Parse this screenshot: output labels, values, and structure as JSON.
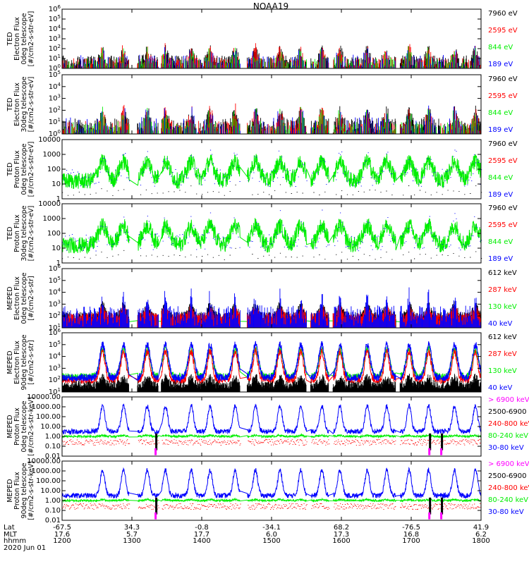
{
  "title": "NOAA19",
  "colors": {
    "black": "#000000",
    "red": "#ff0000",
    "green": "#00ee00",
    "blue": "#0000ff",
    "magenta": "#ff00ff"
  },
  "chart_data": {
    "type": "line",
    "title": "NOAA19",
    "x_axis": {
      "rows": [
        {
          "label": "Lat",
          "values": [
            "-67.5",
            "34.3",
            "-0.8",
            "-34.1",
            "68.2",
            "-76.5",
            "41.9"
          ]
        },
        {
          "label": "MLT",
          "values": [
            "17.6",
            "5.7",
            "17.7",
            "6.0",
            "17.3",
            "16.8",
            "6.2"
          ]
        },
        {
          "label": "hhmm",
          "values": [
            "1200",
            "1300",
            "1400",
            "1500",
            "1600",
            "1700",
            "1800"
          ]
        }
      ],
      "date": "2020 Jun 01",
      "x_range_hours": [
        12,
        18
      ]
    },
    "panels": [
      {
        "ylabel": [
          "TED",
          "Electron Flux",
          "0deg telescope",
          "[#/cm2-s-str-eV]"
        ],
        "ticks": [
          "10^0",
          "10^1",
          "10^2",
          "10^3",
          "10^4",
          "10^5",
          "10^6"
        ],
        "log_range": [
          0,
          6
        ],
        "legend": [
          {
            "label": "7960 eV",
            "color": "black"
          },
          {
            "label": "2595 eV",
            "color": "red"
          },
          {
            "label": "844 eV",
            "color": "green"
          },
          {
            "label": "189 eV",
            "color": "blue"
          }
        ]
      },
      {
        "ylabel": [
          "TED",
          "Electron Flux",
          "30deg telescope",
          "[#/cm2-s-str-eV]"
        ],
        "ticks": [
          "10^0",
          "10^1",
          "10^2",
          "10^3",
          "10^4",
          "10^5"
        ],
        "log_range": [
          0,
          5
        ],
        "legend": [
          {
            "label": "7960 eV",
            "color": "black"
          },
          {
            "label": "2595 eV",
            "color": "red"
          },
          {
            "label": "844 eV",
            "color": "green"
          },
          {
            "label": "189 eV",
            "color": "blue"
          }
        ]
      },
      {
        "ylabel": [
          "TED",
          "Proton Flux",
          "0deg telescope",
          "[#/cm2-s-str-eV]"
        ],
        "ticks": [
          "1",
          "10",
          "100",
          "1000",
          "10000"
        ],
        "log_range": [
          0,
          4
        ],
        "legend": [
          {
            "label": "7960 eV",
            "color": "black"
          },
          {
            "label": "2595 eV",
            "color": "red"
          },
          {
            "label": "844 eV",
            "color": "green"
          },
          {
            "label": "189 eV",
            "color": "blue"
          }
        ]
      },
      {
        "ylabel": [
          "TED",
          "Proton Flux",
          "30deg telescope",
          "[#/cm2-s-str-eV]"
        ],
        "ticks": [
          "1",
          "10",
          "100",
          "1000",
          "10000"
        ],
        "log_range": [
          0,
          4
        ],
        "legend": [
          {
            "label": "7960 eV",
            "color": "black"
          },
          {
            "label": "2595 eV",
            "color": "red"
          },
          {
            "label": "844 eV",
            "color": "green"
          },
          {
            "label": "189 eV",
            "color": "blue"
          }
        ]
      },
      {
        "ylabel": [
          "MEPED",
          "Electron Flux",
          "0deg telescope",
          "[#/cm2-s-str]"
        ],
        "ticks": [
          "10^1",
          "10^2",
          "10^3",
          "10^4",
          "10^5",
          "10^6"
        ],
        "log_range": [
          1,
          6
        ],
        "legend": [
          {
            "label": "612 keV",
            "color": "black"
          },
          {
            "label": "287 keV",
            "color": "red"
          },
          {
            "label": "130 keV",
            "color": "green"
          },
          {
            "label": "40 keV",
            "color": "blue"
          }
        ]
      },
      {
        "ylabel": [
          "MEPED",
          "Electron Flux",
          "90deg telescope",
          "[#/cm2-s-str]"
        ],
        "ticks": [
          "10^1",
          "10^2",
          "10^3",
          "10^4",
          "10^5",
          "10^6"
        ],
        "log_range": [
          1,
          6
        ],
        "legend": [
          {
            "label": "612 keV",
            "color": "black"
          },
          {
            "label": "287 keV",
            "color": "red"
          },
          {
            "label": "130 keV",
            "color": "green"
          },
          {
            "label": "40 keV",
            "color": "blue"
          }
        ]
      },
      {
        "ylabel": [
          "MEPED",
          "Proton Flux",
          "0deg telescope",
          "[#/cm2-s-str-keV]"
        ],
        "ticks": [
          "0.01",
          "0.10",
          "1.00",
          "10.00",
          "100.00",
          "1000.00",
          "10000.00"
        ],
        "log_range": [
          -2,
          4
        ],
        "legend": [
          {
            "label": "> 6900 keV",
            "color": "magenta"
          },
          {
            "label": "2500-6900",
            "color": "black"
          },
          {
            "label": "240-800 keV",
            "color": "red"
          },
          {
            "label": "80-240 keV",
            "color": "green"
          },
          {
            "label": "30-80 keV",
            "color": "blue"
          }
        ]
      },
      {
        "ylabel": [
          "MEPED",
          "Proton Flux",
          "90deg telescope",
          "[#/cm2-s-str-keV]"
        ],
        "ticks": [
          "0.01",
          "0.10",
          "1.00",
          "10.00",
          "100.00",
          "1000.00",
          "10000.00"
        ],
        "log_range": [
          -2,
          4
        ],
        "legend": [
          {
            "label": "> 6900 keV",
            "color": "magenta"
          },
          {
            "label": "2500-6900",
            "color": "black"
          },
          {
            "label": "240-800 keV",
            "color": "red"
          },
          {
            "label": "80-240 keV",
            "color": "green"
          },
          {
            "label": "30-80 keV",
            "color": "blue"
          }
        ]
      }
    ],
    "features": {
      "pass_centers_hours": [
        12.58,
        12.88,
        13.22,
        13.48,
        13.85,
        14.12,
        14.48,
        14.77,
        15.12,
        15.42,
        15.72,
        15.98,
        16.37,
        16.65,
        16.97,
        17.25,
        17.62,
        17.92
      ],
      "gaps_hours": [
        [
          12.96,
          13.08
        ],
        [
          13.38,
          13.42
        ],
        [
          14.55,
          14.65
        ],
        [
          15.5,
          15.56
        ],
        [
          15.82,
          15.88
        ],
        [
          16.78,
          16.84
        ]
      ],
      "meped_proton_spikes_hours": [
        13.35,
        17.27,
        17.44
      ]
    }
  }
}
